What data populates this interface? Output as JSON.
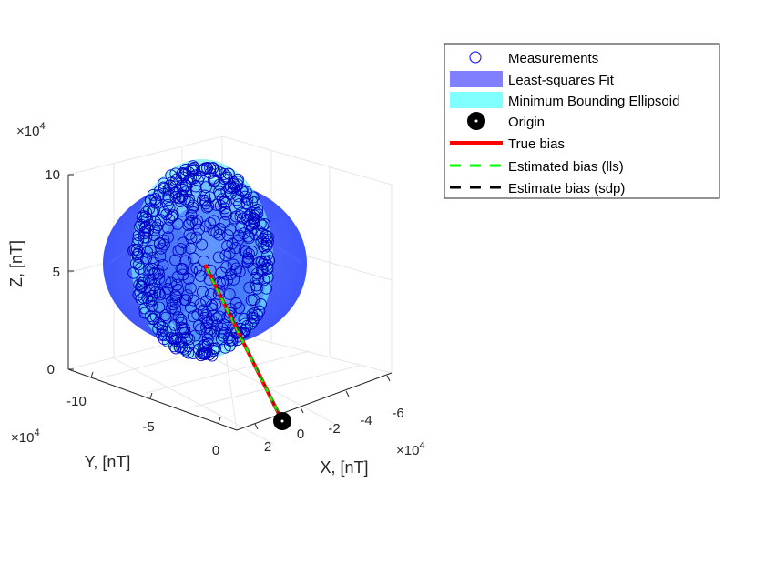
{
  "chart_data": {
    "type": "scatter3d",
    "title": "",
    "axes": {
      "x": {
        "label": "X, [nT]",
        "exponent": "×10^4",
        "ticks": [
          2,
          0,
          -2,
          -4,
          -6
        ],
        "tick_labels": [
          "2",
          "0",
          "-2",
          "-4",
          "-6"
        ],
        "range": [
          2,
          -6.5
        ]
      },
      "y": {
        "label": "Y, [nT]",
        "exponent": "×10^4",
        "ticks": [
          0,
          -5,
          -10
        ],
        "tick_labels": [
          "0",
          "-5",
          "-10"
        ],
        "range": [
          0,
          -12.5
        ]
      },
      "z": {
        "label": "Z, [nT]",
        "exponent": "×10^4",
        "ticks": [
          0,
          5,
          10
        ],
        "tick_labels": [
          "0",
          "5",
          "10"
        ],
        "range": [
          0,
          10.5
        ]
      }
    },
    "grid": true,
    "legend_position": "top-right",
    "legend": [
      {
        "name": "Measurements",
        "symbol": "circle",
        "color": "#0000ff"
      },
      {
        "name": "Least-squares Fit",
        "symbol": "patch",
        "color": "#8080ff"
      },
      {
        "name": "Minimum Bounding Ellipsoid",
        "symbol": "patch",
        "color": "#80ffff"
      },
      {
        "name": "Origin",
        "symbol": "filled-circle",
        "color": "#000000"
      },
      {
        "name": "True bias",
        "symbol": "line",
        "color": "#ff0000"
      },
      {
        "name": "Estimated bias (lls)",
        "symbol": "dashed",
        "color": "#00ff00"
      },
      {
        "name": "Estimate bias (sdp)",
        "symbol": "dashed",
        "color": "#000000"
      }
    ],
    "origin": [
      0,
      0,
      0
    ],
    "ellipsoid_center": [
      -1.5,
      -6.5,
      5.2
    ],
    "true_bias": [
      -1.5,
      -6.5,
      5.2
    ]
  }
}
